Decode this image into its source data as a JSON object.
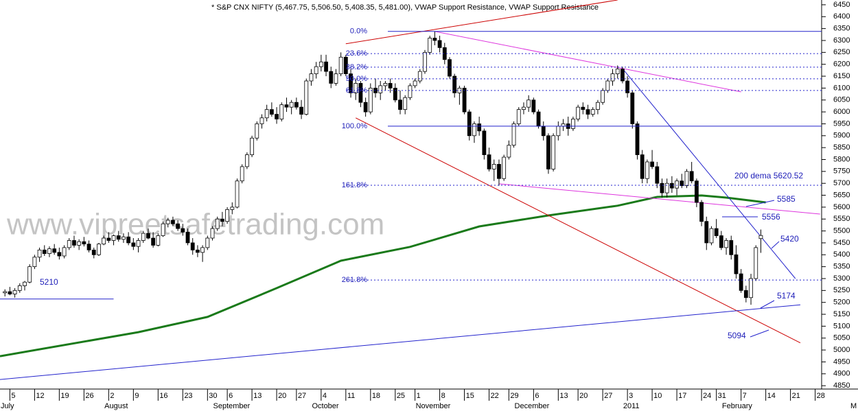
{
  "chart_data": {
    "type": "candlestick",
    "title": "* S&P CNX NIFTY (5,467.75, 5,506.50, 5,408.35, 5,481.00), VWAP Support Resistance, VWAP Support Resistance",
    "watermark": "www.vipreetsafetrading.com",
    "up_color": "#ffffff",
    "down_color": "#000000",
    "xlim": [
      0,
      172
    ],
    "ylim": [
      4836,
      6470
    ],
    "yticks": [
      4850,
      4900,
      4950,
      5000,
      5050,
      5100,
      5150,
      5200,
      5250,
      5300,
      5350,
      5400,
      5450,
      5500,
      5550,
      5600,
      5650,
      5700,
      5750,
      5800,
      5850,
      5900,
      5950,
      6000,
      6050,
      6100,
      6150,
      6200,
      6250,
      6300,
      6350,
      6400,
      6450
    ],
    "xticks": [
      {
        "value": 2,
        "label": "5"
      },
      {
        "value": 7,
        "label": "12"
      },
      {
        "value": 12,
        "label": "19"
      },
      {
        "value": 17,
        "label": "26"
      },
      {
        "value": 22,
        "label": "2"
      },
      {
        "value": 27,
        "label": "9"
      },
      {
        "value": 32,
        "label": "16"
      },
      {
        "value": 37,
        "label": "23"
      },
      {
        "value": 42,
        "label": "30"
      },
      {
        "value": 46,
        "label": "6"
      },
      {
        "value": 51,
        "label": "13"
      },
      {
        "value": 56,
        "label": "20"
      },
      {
        "value": 60,
        "label": "27"
      },
      {
        "value": 65,
        "label": "4"
      },
      {
        "value": 70,
        "label": "11"
      },
      {
        "value": 75,
        "label": "18"
      },
      {
        "value": 80,
        "label": "25"
      },
      {
        "value": 84,
        "label": "1"
      },
      {
        "value": 89,
        "label": "8"
      },
      {
        "value": 94,
        "label": "15"
      },
      {
        "value": 99,
        "label": "22"
      },
      {
        "value": 103,
        "label": "29"
      },
      {
        "value": 108,
        "label": "6"
      },
      {
        "value": 113,
        "label": "13"
      },
      {
        "value": 117,
        "label": "20"
      },
      {
        "value": 122,
        "label": "27"
      },
      {
        "value": 127,
        "label": "3"
      },
      {
        "value": 132,
        "label": "10"
      },
      {
        "value": 137,
        "label": "17"
      },
      {
        "value": 142,
        "label": "24"
      },
      {
        "value": 145,
        "label": "31"
      },
      {
        "value": 150,
        "label": "7"
      },
      {
        "value": 155,
        "label": "14"
      },
      {
        "value": 160,
        "label": "21"
      },
      {
        "value": 165,
        "label": "28"
      }
    ],
    "months": [
      {
        "value": 0,
        "label": "July"
      },
      {
        "value": 21,
        "label": "August"
      },
      {
        "value": 43,
        "label": "September"
      },
      {
        "value": 63,
        "label": "October"
      },
      {
        "value": 84,
        "label": "November"
      },
      {
        "value": 104,
        "label": "December"
      },
      {
        "value": 126,
        "label": "2011"
      },
      {
        "value": 146,
        "label": "February"
      },
      {
        "value": 172,
        "label": "M"
      }
    ],
    "x": [
      1,
      2,
      3,
      4,
      5,
      6,
      7,
      8,
      9,
      10,
      11,
      12,
      13,
      14,
      15,
      16,
      17,
      18,
      19,
      20,
      21,
      22,
      23,
      24,
      25,
      26,
      27,
      28,
      29,
      30,
      31,
      32,
      33,
      34,
      35,
      36,
      37,
      38,
      39,
      40,
      41,
      42,
      43,
      44,
      45,
      46,
      47,
      48,
      49,
      50,
      51,
      52,
      53,
      54,
      55,
      56,
      57,
      58,
      59,
      60,
      61,
      62,
      63,
      64,
      65,
      66,
      67,
      68,
      69,
      70,
      71,
      72,
      73,
      74,
      75,
      76,
      77,
      78,
      79,
      80,
      81,
      82,
      83,
      84,
      85,
      86,
      87,
      88,
      89,
      90,
      91,
      92,
      93,
      94,
      95,
      96,
      97,
      98,
      99,
      100,
      101,
      102,
      103,
      104,
      105,
      106,
      107,
      108,
      109,
      110,
      111,
      112,
      113,
      114,
      115,
      116,
      117,
      118,
      119,
      120,
      121,
      122,
      123,
      124,
      125,
      126,
      127,
      128,
      129,
      130,
      131,
      132,
      133,
      134,
      135,
      136,
      137,
      138,
      139,
      140,
      141,
      142,
      143,
      144,
      145,
      146,
      147,
      148,
      149,
      150,
      151,
      152,
      153,
      154
    ],
    "ohlc": [
      [
        5240,
        5255,
        5225,
        5245
      ],
      [
        5245,
        5265,
        5230,
        5235
      ],
      [
        5235,
        5260,
        5220,
        5250
      ],
      [
        5250,
        5280,
        5240,
        5270
      ],
      [
        5270,
        5290,
        5250,
        5285
      ],
      [
        5285,
        5360,
        5280,
        5350
      ],
      [
        5350,
        5400,
        5340,
        5390
      ],
      [
        5390,
        5430,
        5370,
        5420
      ],
      [
        5420,
        5440,
        5395,
        5405
      ],
      [
        5405,
        5435,
        5390,
        5425
      ],
      [
        5425,
        5445,
        5400,
        5410
      ],
      [
        5410,
        5430,
        5380,
        5395
      ],
      [
        5395,
        5440,
        5385,
        5430
      ],
      [
        5430,
        5470,
        5420,
        5460
      ],
      [
        5460,
        5480,
        5430,
        5440
      ],
      [
        5440,
        5465,
        5420,
        5455
      ],
      [
        5455,
        5475,
        5435,
        5445
      ],
      [
        5445,
        5460,
        5410,
        5420
      ],
      [
        5420,
        5430,
        5385,
        5400
      ],
      [
        5400,
        5450,
        5395,
        5445
      ],
      [
        5445,
        5480,
        5440,
        5470
      ],
      [
        5470,
        5495,
        5450,
        5460
      ],
      [
        5460,
        5485,
        5440,
        5480
      ],
      [
        5480,
        5500,
        5455,
        5465
      ],
      [
        5465,
        5490,
        5450,
        5475
      ],
      [
        5475,
        5495,
        5440,
        5450
      ],
      [
        5450,
        5470,
        5420,
        5435
      ],
      [
        5435,
        5470,
        5410,
        5460
      ],
      [
        5460,
        5500,
        5450,
        5490
      ],
      [
        5490,
        5510,
        5465,
        5470
      ],
      [
        5470,
        5495,
        5430,
        5440
      ],
      [
        5440,
        5490,
        5435,
        5480
      ],
      [
        5480,
        5540,
        5475,
        5530
      ],
      [
        5530,
        5555,
        5515,
        5545
      ],
      [
        5545,
        5560,
        5520,
        5530
      ],
      [
        5530,
        5545,
        5500,
        5510
      ],
      [
        5510,
        5530,
        5480,
        5495
      ],
      [
        5495,
        5510,
        5440,
        5450
      ],
      [
        5450,
        5470,
        5400,
        5420
      ],
      [
        5420,
        5440,
        5390,
        5410
      ],
      [
        5410,
        5440,
        5370,
        5430
      ],
      [
        5430,
        5480,
        5420,
        5470
      ],
      [
        5470,
        5520,
        5460,
        5510
      ],
      [
        5510,
        5560,
        5500,
        5550
      ],
      [
        5550,
        5580,
        5520,
        5540
      ],
      [
        5540,
        5600,
        5530,
        5590
      ],
      [
        5590,
        5620,
        5570,
        5600
      ],
      [
        5600,
        5720,
        5595,
        5710
      ],
      [
        5710,
        5780,
        5700,
        5770
      ],
      [
        5770,
        5830,
        5760,
        5820
      ],
      [
        5820,
        5900,
        5810,
        5890
      ],
      [
        5890,
        5960,
        5880,
        5950
      ],
      [
        5950,
        5990,
        5930,
        5975
      ],
      [
        5975,
        6030,
        5960,
        6010
      ],
      [
        6010,
        6040,
        5980,
        5990
      ],
      [
        5990,
        6020,
        5950,
        5970
      ],
      [
        5970,
        6040,
        5960,
        6030
      ],
      [
        6030,
        6060,
        6000,
        6020
      ],
      [
        6020,
        6050,
        5990,
        6040
      ],
      [
        6040,
        6060,
        6010,
        6020
      ],
      [
        6020,
        6050,
        5970,
        5990
      ],
      [
        5990,
        6140,
        5985,
        6130
      ],
      [
        6130,
        6180,
        6110,
        6160
      ],
      [
        6160,
        6210,
        6140,
        6190
      ],
      [
        6190,
        6240,
        6170,
        6210
      ],
      [
        6210,
        6240,
        6150,
        6170
      ],
      [
        6170,
        6190,
        6100,
        6120
      ],
      [
        6120,
        6180,
        6110,
        6160
      ],
      [
        6160,
        6250,
        6150,
        6230
      ],
      [
        6230,
        6240,
        6150,
        6160
      ],
      [
        6160,
        6180,
        6060,
        6080
      ],
      [
        6080,
        6140,
        6050,
        6120
      ],
      [
        6120,
        6130,
        6020,
        6040
      ],
      [
        6040,
        6060,
        5980,
        6000
      ],
      [
        6000,
        6120,
        5990,
        6100
      ],
      [
        6100,
        6140,
        6060,
        6080
      ],
      [
        6080,
        6130,
        6050,
        6110
      ],
      [
        6110,
        6130,
        6090,
        6120
      ],
      [
        6120,
        6140,
        6080,
        6100
      ],
      [
        6100,
        6120,
        6040,
        6050
      ],
      [
        6050,
        6090,
        5990,
        6010
      ],
      [
        6010,
        6070,
        5990,
        6060
      ],
      [
        6060,
        6120,
        6050,
        6110
      ],
      [
        6110,
        6140,
        6100,
        6130
      ],
      [
        6130,
        6180,
        6120,
        6170
      ],
      [
        6170,
        6260,
        6160,
        6250
      ],
      [
        6250,
        6320,
        6240,
        6310
      ],
      [
        6310,
        6338,
        6280,
        6300
      ],
      [
        6300,
        6320,
        6250,
        6270
      ],
      [
        6270,
        6290,
        6200,
        6220
      ],
      [
        6220,
        6230,
        6140,
        6150
      ],
      [
        6150,
        6160,
        6060,
        6080
      ],
      [
        6080,
        6110,
        6030,
        6100
      ],
      [
        6100,
        6110,
        5990,
        6000
      ],
      [
        6000,
        6010,
        5880,
        5900
      ],
      [
        5900,
        5960,
        5870,
        5950
      ],
      [
        5950,
        5980,
        5900,
        5920
      ],
      [
        5920,
        5930,
        5800,
        5820
      ],
      [
        5820,
        5850,
        5750,
        5760
      ],
      [
        5760,
        5800,
        5710,
        5780
      ],
      [
        5780,
        5800,
        5690,
        5720
      ],
      [
        5720,
        5820,
        5710,
        5810
      ],
      [
        5810,
        5880,
        5800,
        5860
      ],
      [
        5860,
        5960,
        5850,
        5950
      ],
      [
        5950,
        6020,
        5940,
        6010
      ],
      [
        6010,
        6040,
        5990,
        6020
      ],
      [
        6020,
        6070,
        6000,
        6050
      ],
      [
        6050,
        6060,
        5990,
        6000
      ],
      [
        6000,
        6010,
        5930,
        5940
      ],
      [
        5940,
        5960,
        5880,
        5900
      ],
      [
        5900,
        5910,
        5740,
        5760
      ],
      [
        5760,
        5910,
        5750,
        5900
      ],
      [
        5900,
        5960,
        5880,
        5940
      ],
      [
        5940,
        5970,
        5920,
        5950
      ],
      [
        5950,
        5980,
        5900,
        5930
      ],
      [
        5930,
        5980,
        5920,
        5970
      ],
      [
        5970,
        6030,
        5960,
        6020
      ],
      [
        6020,
        6040,
        5990,
        6010
      ],
      [
        6010,
        6030,
        5970,
        5990
      ],
      [
        5990,
        6020,
        5980,
        6010
      ],
      [
        6010,
        6050,
        5990,
        6040
      ],
      [
        6040,
        6100,
        6030,
        6090
      ],
      [
        6090,
        6140,
        6080,
        6130
      ],
      [
        6130,
        6180,
        6110,
        6160
      ],
      [
        6160,
        6195,
        6140,
        6180
      ],
      [
        6180,
        6190,
        6120,
        6130
      ],
      [
        6130,
        6150,
        6060,
        6080
      ],
      [
        6080,
        6090,
        5930,
        5950
      ],
      [
        5950,
        5960,
        5800,
        5820
      ],
      [
        5820,
        5840,
        5700,
        5720
      ],
      [
        5720,
        5800,
        5700,
        5790
      ],
      [
        5790,
        5840,
        5760,
        5770
      ],
      [
        5770,
        5790,
        5680,
        5700
      ],
      [
        5700,
        5720,
        5640,
        5660
      ],
      [
        5660,
        5720,
        5640,
        5700
      ],
      [
        5700,
        5730,
        5660,
        5680
      ],
      [
        5680,
        5720,
        5650,
        5710
      ],
      [
        5710,
        5740,
        5680,
        5690
      ],
      [
        5690,
        5760,
        5680,
        5750
      ],
      [
        5750,
        5790,
        5700,
        5710
      ],
      [
        5710,
        5720,
        5600,
        5620
      ],
      [
        5620,
        5630,
        5520,
        5540
      ],
      [
        5540,
        5560,
        5420,
        5450
      ],
      [
        5450,
        5520,
        5440,
        5510
      ],
      [
        5510,
        5550,
        5470,
        5480
      ],
      [
        5480,
        5500,
        5420,
        5430
      ],
      [
        5430,
        5470,
        5400,
        5460
      ],
      [
        5460,
        5480,
        5380,
        5400
      ],
      [
        5400,
        5440,
        5300,
        5320
      ],
      [
        5320,
        5340,
        5240,
        5250
      ],
      [
        5250,
        5270,
        5200,
        5220
      ],
      [
        5220,
        5320,
        5190,
        5300
      ],
      [
        5300,
        5440,
        5290,
        5430
      ],
      [
        5468,
        5506,
        5408,
        5481
      ]
    ],
    "lines": [
      {
        "color": "#1a7a1a",
        "width": 3,
        "x": [
          0,
          28,
          42,
          56,
          69,
          83,
          90,
          97,
          111,
          125,
          133,
          142,
          147,
          155
        ],
        "values": [
          4974,
          5075,
          5139,
          5260,
          5375,
          5433,
          5476,
          5519,
          5565,
          5606,
          5643,
          5649,
          5640,
          5620
        ]
      },
      {
        "color": "#cc0000",
        "width": 1,
        "x": [
          70,
          125
        ],
        "values": [
          6286,
          6470
        ]
      },
      {
        "color": "#cc0000",
        "width": 1,
        "x": [
          72,
          162
        ],
        "values": [
          5975,
          5030
        ]
      },
      {
        "color": "#dd33dd",
        "width": 1,
        "x": [
          88,
          150
        ],
        "values": [
          6338,
          6084
        ]
      },
      {
        "color": "#dd33dd",
        "width": 1,
        "x": [
          101,
          166
        ],
        "values": [
          5698,
          5571
        ]
      },
      {
        "color": "#2222cc",
        "width": 1,
        "x": [
          126,
          161
        ],
        "values": [
          6182,
          5300
        ]
      },
      {
        "color": "#2222cc",
        "width": 1,
        "x": [
          0,
          162
        ],
        "values": [
          4876,
          5190
        ]
      },
      {
        "color": "#2222cc",
        "width": 1,
        "x": [
          0,
          23
        ],
        "values": [
          5214,
          5214
        ]
      }
    ],
    "fib_levels": [
      {
        "label": "0.0%",
        "value": 6338
      },
      {
        "label": "23.6%",
        "value": 6245
      },
      {
        "label": "38.2%",
        "value": 6188
      },
      {
        "label": "50.0%",
        "value": 6139
      },
      {
        "label": "61.8%",
        "value": 6090
      },
      {
        "label": "100.0%",
        "value": 5940
      },
      {
        "label": "161.8%",
        "value": 5692
      },
      {
        "label": "261.8%",
        "value": 5294
      }
    ],
    "annotations": [
      "5210",
      "200 dema 5620.52",
      "5585",
      "5556",
      "5420",
      "5174",
      "5094"
    ]
  }
}
